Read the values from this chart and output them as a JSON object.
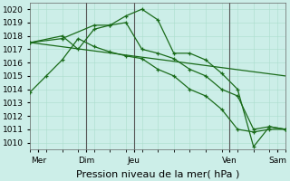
{
  "background_color": "#cceee8",
  "grid_color": "#aaddcc",
  "line_color": "#1a6b1a",
  "xlim": [
    0,
    16
  ],
  "ylim": [
    1009.5,
    1020.5
  ],
  "xlabel": "Pression niveau de la mer( hPa )",
  "xlabel_fontsize": 8,
  "tick_fontsize": 6.5,
  "series": [
    {
      "x": [
        0,
        1,
        2,
        3,
        4,
        5,
        6,
        7,
        8,
        9,
        10,
        11,
        12,
        13,
        14,
        15,
        16
      ],
      "y": [
        1013.8,
        1015.0,
        1016.2,
        1017.8,
        1017.2,
        1016.8,
        1016.5,
        1016.3,
        1015.5,
        1015.0,
        1014.0,
        1013.5,
        1012.5,
        1011.0,
        1010.8,
        1011.0,
        1011.0
      ],
      "marker": "+"
    },
    {
      "x": [
        0,
        2,
        4,
        5,
        6,
        7,
        8,
        9,
        10,
        11,
        12,
        13,
        14,
        15,
        16
      ],
      "y": [
        1017.5,
        1017.8,
        1018.8,
        1018.8,
        1019.5,
        1020.0,
        1019.2,
        1016.7,
        1016.7,
        1016.2,
        1015.2,
        1014.0,
        1009.7,
        1011.2,
        1011.0
      ],
      "marker": "+"
    },
    {
      "x": [
        0,
        2,
        3,
        4,
        5,
        6,
        7,
        8,
        9,
        10,
        11,
        12,
        13,
        14,
        15,
        16
      ],
      "y": [
        1017.5,
        1018.0,
        1017.0,
        1018.5,
        1018.8,
        1019.0,
        1017.0,
        1016.7,
        1016.3,
        1015.5,
        1015.0,
        1014.0,
        1013.5,
        1011.0,
        1011.2,
        1011.0
      ],
      "marker": "+"
    },
    {
      "x": [
        0,
        16
      ],
      "y": [
        1017.5,
        1015.0
      ],
      "marker": null
    }
  ],
  "vlines_x": [
    3.5,
    6.5,
    12.5
  ],
  "vline_color": "#555555",
  "xtick_positions": [
    0.5,
    3.5,
    6.5,
    12.5,
    15.5
  ],
  "xtick_labels": [
    "Mer",
    "Dim",
    "Jeu",
    "Ven",
    "Sam"
  ]
}
